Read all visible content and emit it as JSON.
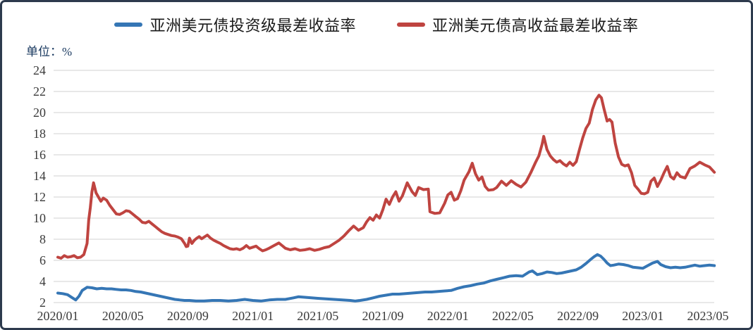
{
  "frame": {
    "border_color": "#2d3a4d",
    "background": "#ffffff"
  },
  "legend": {
    "items": [
      {
        "label": "亚洲美元债投资级最差收益率",
        "color": "#3576b5"
      },
      {
        "label": "亚洲美元债高收益最差收益率",
        "color": "#bf4440"
      }
    ]
  },
  "unit_label": "单位：%",
  "chart_data": {
    "type": "line",
    "title": "",
    "ylabel": "单位：%",
    "xlabel": "",
    "ylim": [
      2,
      24
    ],
    "y_ticks": [
      2,
      4,
      6,
      8,
      10,
      12,
      14,
      16,
      18,
      20,
      22,
      24
    ],
    "x_tick_labels": [
      "2020/01",
      "2020/05",
      "2020/09",
      "2021/01",
      "2021/05",
      "2021/09",
      "2022/01",
      "2022/05",
      "2022/09",
      "2023/01",
      "2023/05"
    ],
    "x_tick_months": [
      0,
      4,
      8,
      12,
      16,
      20,
      24,
      28,
      32,
      36,
      40
    ],
    "x_unit": "months_since_2020_01",
    "grid": "horizontal",
    "legend_position": "top",
    "gridline_color": "#d9d9d9",
    "series": [
      {
        "name": "亚洲美元债投资级最差收益率",
        "color": "#3576b5",
        "points": [
          [
            0,
            2.9
          ],
          [
            0.3,
            2.85
          ],
          [
            0.6,
            2.75
          ],
          [
            0.9,
            2.45
          ],
          [
            1.1,
            2.25
          ],
          [
            1.3,
            2.6
          ],
          [
            1.5,
            3.15
          ],
          [
            1.8,
            3.45
          ],
          [
            2.1,
            3.4
          ],
          [
            2.4,
            3.3
          ],
          [
            2.7,
            3.35
          ],
          [
            3,
            3.3
          ],
          [
            3.3,
            3.3
          ],
          [
            3.6,
            3.25
          ],
          [
            3.9,
            3.2
          ],
          [
            4.2,
            3.2
          ],
          [
            4.5,
            3.15
          ],
          [
            4.8,
            3.05
          ],
          [
            5.1,
            3
          ],
          [
            5.4,
            2.9
          ],
          [
            5.7,
            2.8
          ],
          [
            6,
            2.7
          ],
          [
            6.3,
            2.6
          ],
          [
            6.6,
            2.5
          ],
          [
            6.9,
            2.4
          ],
          [
            7.2,
            2.3
          ],
          [
            7.5,
            2.25
          ],
          [
            7.8,
            2.2
          ],
          [
            8.1,
            2.2
          ],
          [
            8.5,
            2.15
          ],
          [
            9,
            2.15
          ],
          [
            9.5,
            2.2
          ],
          [
            10,
            2.2
          ],
          [
            10.5,
            2.15
          ],
          [
            11,
            2.2
          ],
          [
            11.5,
            2.3
          ],
          [
            12,
            2.2
          ],
          [
            12.5,
            2.15
          ],
          [
            13,
            2.25
          ],
          [
            13.5,
            2.3
          ],
          [
            14,
            2.3
          ],
          [
            14.5,
            2.45
          ],
          [
            14.8,
            2.55
          ],
          [
            15.2,
            2.5
          ],
          [
            15.6,
            2.45
          ],
          [
            16,
            2.4
          ],
          [
            16.5,
            2.35
          ],
          [
            17,
            2.3
          ],
          [
            17.5,
            2.25
          ],
          [
            18,
            2.2
          ],
          [
            18.3,
            2.15
          ],
          [
            18.6,
            2.2
          ],
          [
            19,
            2.3
          ],
          [
            19.4,
            2.45
          ],
          [
            19.8,
            2.6
          ],
          [
            20.2,
            2.7
          ],
          [
            20.6,
            2.8
          ],
          [
            21,
            2.8
          ],
          [
            21.4,
            2.85
          ],
          [
            21.8,
            2.9
          ],
          [
            22.2,
            2.95
          ],
          [
            22.6,
            3
          ],
          [
            23,
            3
          ],
          [
            23.4,
            3.05
          ],
          [
            23.8,
            3.1
          ],
          [
            24.2,
            3.15
          ],
          [
            24.6,
            3.35
          ],
          [
            25,
            3.5
          ],
          [
            25.4,
            3.6
          ],
          [
            25.8,
            3.75
          ],
          [
            26.2,
            3.85
          ],
          [
            26.6,
            4.05
          ],
          [
            27,
            4.2
          ],
          [
            27.4,
            4.35
          ],
          [
            27.8,
            4.5
          ],
          [
            28.2,
            4.55
          ],
          [
            28.6,
            4.5
          ],
          [
            29,
            4.9
          ],
          [
            29.2,
            5
          ],
          [
            29.5,
            4.65
          ],
          [
            29.8,
            4.75
          ],
          [
            30.1,
            4.9
          ],
          [
            30.4,
            4.85
          ],
          [
            30.7,
            4.75
          ],
          [
            31,
            4.8
          ],
          [
            31.3,
            4.9
          ],
          [
            31.6,
            5
          ],
          [
            31.9,
            5.1
          ],
          [
            32.2,
            5.35
          ],
          [
            32.5,
            5.7
          ],
          [
            32.8,
            6.1
          ],
          [
            33,
            6.35
          ],
          [
            33.2,
            6.55
          ],
          [
            33.4,
            6.4
          ],
          [
            33.6,
            6.1
          ],
          [
            33.8,
            5.75
          ],
          [
            34,
            5.5
          ],
          [
            34.2,
            5.55
          ],
          [
            34.5,
            5.65
          ],
          [
            34.8,
            5.6
          ],
          [
            35.1,
            5.5
          ],
          [
            35.4,
            5.35
          ],
          [
            35.7,
            5.3
          ],
          [
            36,
            5.25
          ],
          [
            36.3,
            5.5
          ],
          [
            36.6,
            5.75
          ],
          [
            36.9,
            5.9
          ],
          [
            37.1,
            5.6
          ],
          [
            37.4,
            5.4
          ],
          [
            37.7,
            5.3
          ],
          [
            38,
            5.35
          ],
          [
            38.3,
            5.3
          ],
          [
            38.6,
            5.35
          ],
          [
            38.9,
            5.45
          ],
          [
            39.2,
            5.55
          ],
          [
            39.5,
            5.45
          ],
          [
            39.8,
            5.5
          ],
          [
            40.1,
            5.55
          ],
          [
            40.4,
            5.5
          ]
        ]
      },
      {
        "name": "亚洲美元债高收益最差收益率",
        "color": "#bf4440",
        "points": [
          [
            0,
            6.3
          ],
          [
            0.2,
            6.2
          ],
          [
            0.4,
            6.45
          ],
          [
            0.6,
            6.3
          ],
          [
            0.8,
            6.35
          ],
          [
            1,
            6.45
          ],
          [
            1.2,
            6.25
          ],
          [
            1.4,
            6.3
          ],
          [
            1.6,
            6.55
          ],
          [
            1.8,
            7.6
          ],
          [
            1.9,
            9.8
          ],
          [
            2,
            11
          ],
          [
            2.1,
            12.5
          ],
          [
            2.2,
            13.35
          ],
          [
            2.35,
            12.4
          ],
          [
            2.5,
            12
          ],
          [
            2.65,
            11.6
          ],
          [
            2.8,
            11.9
          ],
          [
            3,
            11.7
          ],
          [
            3.2,
            11.2
          ],
          [
            3.4,
            10.8
          ],
          [
            3.6,
            10.4
          ],
          [
            3.8,
            10.35
          ],
          [
            4,
            10.5
          ],
          [
            4.2,
            10.7
          ],
          [
            4.4,
            10.65
          ],
          [
            4.6,
            10.4
          ],
          [
            4.8,
            10.15
          ],
          [
            5,
            9.9
          ],
          [
            5.2,
            9.6
          ],
          [
            5.4,
            9.55
          ],
          [
            5.6,
            9.7
          ],
          [
            5.8,
            9.45
          ],
          [
            6,
            9.2
          ],
          [
            6.2,
            8.95
          ],
          [
            6.4,
            8.7
          ],
          [
            6.6,
            8.55
          ],
          [
            6.8,
            8.45
          ],
          [
            7,
            8.35
          ],
          [
            7.2,
            8.3
          ],
          [
            7.4,
            8.2
          ],
          [
            7.6,
            8.05
          ],
          [
            7.8,
            7.6
          ],
          [
            7.9,
            7.3
          ],
          [
            8,
            7.35
          ],
          [
            8.1,
            8.1
          ],
          [
            8.25,
            7.6
          ],
          [
            8.4,
            7.9
          ],
          [
            8.55,
            8.1
          ],
          [
            8.7,
            8.25
          ],
          [
            8.85,
            8.05
          ],
          [
            9,
            8.2
          ],
          [
            9.2,
            8.4
          ],
          [
            9.4,
            8.1
          ],
          [
            9.6,
            7.9
          ],
          [
            9.8,
            7.75
          ],
          [
            10,
            7.6
          ],
          [
            10.2,
            7.4
          ],
          [
            10.4,
            7.25
          ],
          [
            10.6,
            7.1
          ],
          [
            10.8,
            7.05
          ],
          [
            11,
            7.1
          ],
          [
            11.2,
            7
          ],
          [
            11.4,
            7.15
          ],
          [
            11.6,
            7.4
          ],
          [
            11.8,
            7.15
          ],
          [
            12,
            7.25
          ],
          [
            12.2,
            7.35
          ],
          [
            12.4,
            7.1
          ],
          [
            12.6,
            6.9
          ],
          [
            12.8,
            7
          ],
          [
            13,
            7.15
          ],
          [
            13.3,
            7.4
          ],
          [
            13.6,
            7.65
          ],
          [
            13.8,
            7.4
          ],
          [
            14,
            7.15
          ],
          [
            14.3,
            7
          ],
          [
            14.6,
            7.1
          ],
          [
            14.9,
            6.95
          ],
          [
            15.2,
            7
          ],
          [
            15.5,
            7.1
          ],
          [
            15.8,
            6.95
          ],
          [
            16.1,
            7.05
          ],
          [
            16.4,
            7.2
          ],
          [
            16.7,
            7.3
          ],
          [
            17,
            7.6
          ],
          [
            17.3,
            7.9
          ],
          [
            17.6,
            8.3
          ],
          [
            17.9,
            8.8
          ],
          [
            18.2,
            9.25
          ],
          [
            18.5,
            8.85
          ],
          [
            18.8,
            9.1
          ],
          [
            19,
            9.65
          ],
          [
            19.2,
            10.05
          ],
          [
            19.4,
            9.8
          ],
          [
            19.6,
            10.3
          ],
          [
            19.8,
            10
          ],
          [
            20,
            10.8
          ],
          [
            20.2,
            11.8
          ],
          [
            20.4,
            11.3
          ],
          [
            20.6,
            12
          ],
          [
            20.8,
            12.5
          ],
          [
            21,
            11.6
          ],
          [
            21.2,
            12.1
          ],
          [
            21.5,
            13.35
          ],
          [
            21.8,
            12.5
          ],
          [
            22,
            12.15
          ],
          [
            22.2,
            12.9
          ],
          [
            22.5,
            12.7
          ],
          [
            22.8,
            12.75
          ],
          [
            22.9,
            10.6
          ],
          [
            23.2,
            10.45
          ],
          [
            23.5,
            10.5
          ],
          [
            23.8,
            11.4
          ],
          [
            24,
            12.2
          ],
          [
            24.2,
            12.45
          ],
          [
            24.4,
            11.7
          ],
          [
            24.6,
            11.85
          ],
          [
            24.8,
            12.6
          ],
          [
            25,
            13.6
          ],
          [
            25.3,
            14.4
          ],
          [
            25.5,
            15.2
          ],
          [
            25.7,
            14.2
          ],
          [
            25.9,
            13.6
          ],
          [
            26.1,
            13.9
          ],
          [
            26.3,
            13
          ],
          [
            26.5,
            12.65
          ],
          [
            26.8,
            12.7
          ],
          [
            27,
            12.9
          ],
          [
            27.3,
            13.5
          ],
          [
            27.6,
            13.1
          ],
          [
            27.9,
            13.55
          ],
          [
            28.2,
            13.2
          ],
          [
            28.5,
            12.95
          ],
          [
            28.8,
            13.4
          ],
          [
            29.1,
            14.3
          ],
          [
            29.4,
            15.3
          ],
          [
            29.6,
            15.9
          ],
          [
            29.8,
            17
          ],
          [
            29.9,
            17.75
          ],
          [
            30.1,
            16.5
          ],
          [
            30.3,
            15.9
          ],
          [
            30.5,
            15.55
          ],
          [
            30.7,
            15.3
          ],
          [
            30.9,
            15.45
          ],
          [
            31.1,
            15.15
          ],
          [
            31.3,
            14.95
          ],
          [
            31.5,
            15.3
          ],
          [
            31.7,
            15
          ],
          [
            31.9,
            15.35
          ],
          [
            32.1,
            16.5
          ],
          [
            32.3,
            17.6
          ],
          [
            32.5,
            18.5
          ],
          [
            32.7,
            19
          ],
          [
            32.9,
            20.3
          ],
          [
            33.1,
            21.2
          ],
          [
            33.3,
            21.65
          ],
          [
            33.45,
            21.4
          ],
          [
            33.6,
            20.4
          ],
          [
            33.8,
            19.2
          ],
          [
            33.95,
            19.35
          ],
          [
            34.1,
            19.1
          ],
          [
            34.3,
            17.1
          ],
          [
            34.5,
            15.8
          ],
          [
            34.7,
            15.1
          ],
          [
            34.9,
            14.95
          ],
          [
            35.1,
            15.05
          ],
          [
            35.3,
            14.3
          ],
          [
            35.5,
            13.1
          ],
          [
            35.7,
            12.75
          ],
          [
            35.9,
            12.35
          ],
          [
            36.1,
            12.3
          ],
          [
            36.3,
            12.45
          ],
          [
            36.5,
            13.5
          ],
          [
            36.7,
            13.8
          ],
          [
            36.9,
            13
          ],
          [
            37.1,
            13.6
          ],
          [
            37.3,
            14.3
          ],
          [
            37.5,
            14.9
          ],
          [
            37.7,
            13.95
          ],
          [
            37.9,
            13.7
          ],
          [
            38.1,
            14.3
          ],
          [
            38.3,
            13.95
          ],
          [
            38.6,
            13.8
          ],
          [
            38.9,
            14.7
          ],
          [
            39.2,
            14.95
          ],
          [
            39.5,
            15.3
          ],
          [
            39.8,
            15.05
          ],
          [
            40.1,
            14.85
          ],
          [
            40.4,
            14.35
          ]
        ]
      }
    ]
  }
}
